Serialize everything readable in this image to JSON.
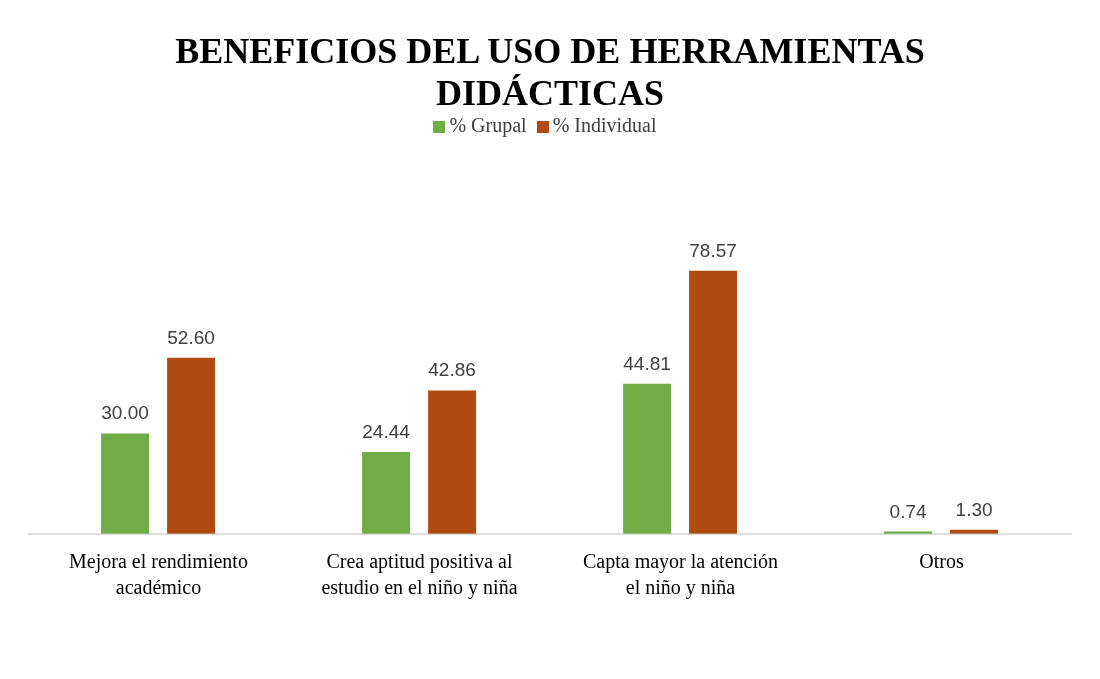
{
  "chart_data": {
    "type": "bar",
    "title": "BENEFICIOS DEL USO DE HERRAMIENTAS DIDÁCTICAS",
    "categories": [
      "Mejora el rendimiento académico",
      "Crea aptitud positiva al estudio en el niño y niña",
      "Capta mayor la atención el niño y niña",
      "Otros"
    ],
    "series": [
      {
        "name": "% Grupal",
        "color": "#70ad47",
        "values": [
          30.0,
          24.44,
          44.81,
          0.74
        ],
        "value_labels": [
          "30.00",
          "24.44",
          "44.81",
          "0.74"
        ]
      },
      {
        "name": "% Individual",
        "color": "#b04a10",
        "values": [
          52.6,
          42.86,
          78.57,
          1.3
        ],
        "value_labels": [
          "52.60",
          "42.86",
          "78.57",
          "1.30"
        ]
      }
    ],
    "legend": "top",
    "grid": false
  }
}
